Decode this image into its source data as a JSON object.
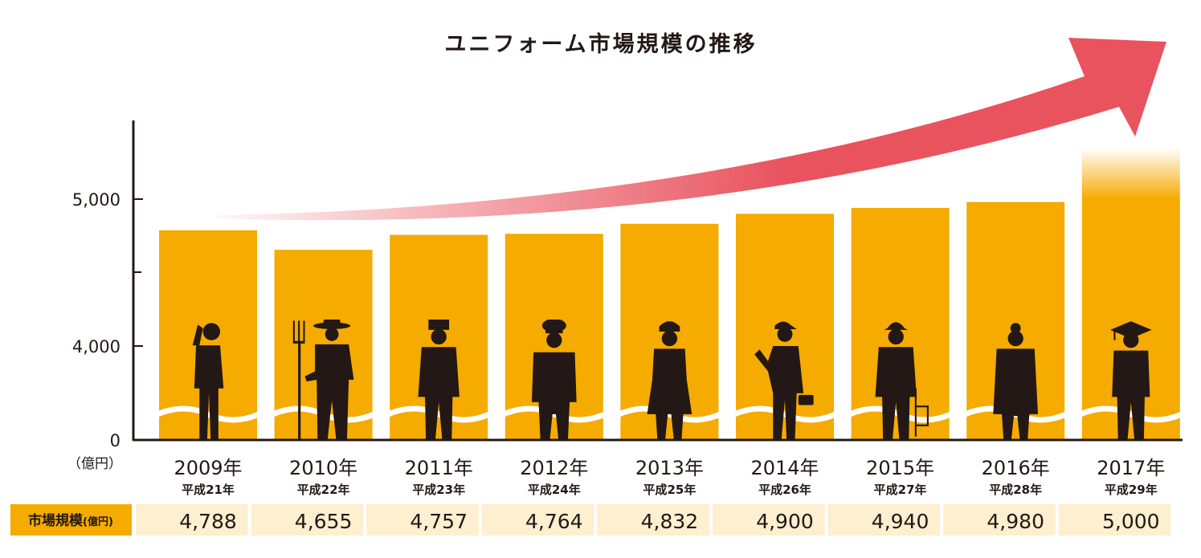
{
  "chart_data": {
    "type": "bar",
    "title": "ユニフォーム市場規模の推移",
    "unit_label": "（億円）",
    "categories": [
      "2009年",
      "2010年",
      "2011年",
      "2012年",
      "2013年",
      "2014年",
      "2015年",
      "2016年",
      "2017年"
    ],
    "sub_categories": [
      "平成21年",
      "平成22年",
      "平成23年",
      "平成24年",
      "平成25年",
      "平成26年",
      "平成27年",
      "平成28年",
      "平成29年"
    ],
    "values": [
      4788,
      4655,
      4757,
      4764,
      4832,
      4900,
      4940,
      4980,
      5000
    ],
    "value_labels": [
      "4,788",
      "4,655",
      "4,757",
      "4,764",
      "4,832",
      "4,900",
      "4,940",
      "4,980",
      "5,000"
    ],
    "yticks": [
      0,
      4000,
      5000
    ],
    "ytick_labels": [
      "0",
      "4,000",
      "5,000"
    ],
    "table_header": "市場規模",
    "table_header_unit": "(億円)",
    "figures": [
      "businessman",
      "farmer",
      "bellhop",
      "chef",
      "nurse",
      "delivery-worker",
      "construction-worker",
      "doctor",
      "graduate"
    ],
    "colors": {
      "bar": "#F5AB00",
      "arrow": "#E9535E",
      "table_header_bg": "#F5AB00",
      "table_cell_bg": "#FDEFCF",
      "figure": "#231815"
    }
  }
}
